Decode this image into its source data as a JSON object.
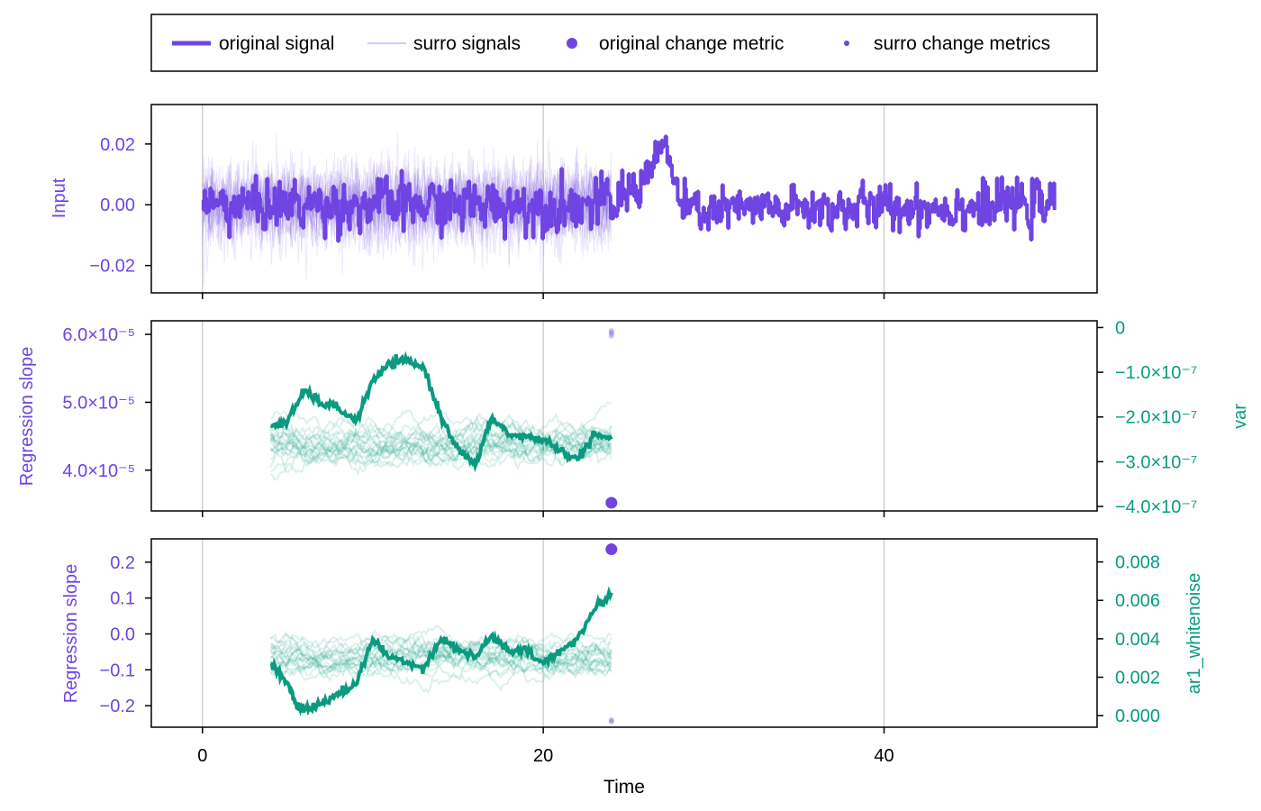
{
  "colors": {
    "primary": "#6f44e2",
    "secondary": "#0a9a80",
    "grid": "#d0d0d0",
    "axis": "#000000"
  },
  "legend": {
    "items": [
      {
        "label": "original signal",
        "marker": "thick-line"
      },
      {
        "label": "surro signals",
        "marker": "thin-line"
      },
      {
        "label": "original change metric",
        "marker": "big-dot"
      },
      {
        "label": "surro change metrics",
        "marker": "small-dot"
      }
    ]
  },
  "chart_data": [
    {
      "type": "line",
      "ylabel": "Input",
      "xlim": [
        -3,
        52.5
      ],
      "ylim": [
        -0.029,
        0.033
      ],
      "yticks": [
        -0.02,
        0.0,
        0.02
      ],
      "ytick_labels": [
        "−0.02",
        "0.00",
        "0.02"
      ],
      "xticks": [
        0,
        20,
        40
      ],
      "grid_x": true,
      "series": [
        {
          "name": "original signal",
          "role": "original",
          "x_start": 0,
          "x_end": 50,
          "noise_envelope": [
            {
              "x": 0,
              "mean": 0.0,
              "amplitude": 0.01
            },
            {
              "x": 24,
              "mean": 0.0,
              "amplitude": 0.011
            },
            {
              "x": 25.5,
              "mean": 0.006,
              "amplitude": 0.009
            },
            {
              "x": 27,
              "mean": 0.02,
              "amplitude": 0.008
            },
            {
              "x": 28.2,
              "mean": -0.002,
              "amplitude": 0.009
            },
            {
              "x": 50,
              "mean": 0.0,
              "amplitude": 0.01
            }
          ],
          "min": -0.026,
          "max": 0.03
        },
        {
          "name": "surro signals",
          "role": "surrogate",
          "count": 20,
          "x_start": 0,
          "x_end": 24,
          "amplitude": 0.012
        }
      ]
    },
    {
      "type": "line",
      "ylabel": "Regression slope",
      "ylabel_right": "var",
      "xlim": [
        -3,
        52.5
      ],
      "ylim_left": [
        3.4e-05,
        6.2e-05
      ],
      "ylim_right": [
        -4.1e-07,
        1.5e-08
      ],
      "yticks_left": [
        4e-05,
        5e-05,
        6e-05
      ],
      "ytick_labels_left": [
        "4.0×10⁻⁵",
        "5.0×10⁻⁵",
        "6.0×10⁻⁵"
      ],
      "yticks_right": [
        0,
        -1e-07,
        -2e-07,
        -3e-07,
        -4e-07
      ],
      "ytick_labels_right": [
        "0",
        "−1.0×10⁻⁷",
        "−2.0×10⁻⁷",
        "−3.0×10⁻⁷",
        "−4.0×10⁻⁷"
      ],
      "xticks": [
        0,
        20,
        40
      ],
      "grid_x": true,
      "metric_series": {
        "x": [
          4,
          5,
          6,
          7,
          8,
          9,
          10,
          11,
          12,
          13,
          14,
          15,
          16,
          17,
          18,
          19,
          20,
          21,
          22,
          23,
          24
        ],
        "y": [
          -2.2e-07,
          -2.1e-07,
          -1.4e-07,
          -1.7e-07,
          -1.8e-07,
          -2.1e-07,
          -1.2e-07,
          -8e-08,
          -7.5e-08,
          -9e-08,
          -2e-07,
          -2.7e-07,
          -3.1e-07,
          -2e-07,
          -2.4e-07,
          -2.45e-07,
          -2.5e-07,
          -2.75e-07,
          -2.95e-07,
          -2.4e-07,
          -2.5e-07
        ]
      },
      "surrogate_metrics": {
        "count": 20,
        "x_start": 4,
        "x_end": 24,
        "y_center": -2.6e-07,
        "spread": 1.2e-07
      },
      "change_metric": {
        "x": 24,
        "original": 3.52e-05,
        "surrogates": [
          5.98e-05,
          6.02e-05,
          6.05e-05
        ]
      }
    },
    {
      "type": "line",
      "ylabel": "Regression slope",
      "ylabel_right": "ar1_whitenoise",
      "xlabel": "Time",
      "xlim": [
        -3,
        52.5
      ],
      "ylim_left": [
        -0.26,
        0.265
      ],
      "ylim_right": [
        -0.0006,
        0.0092
      ],
      "yticks_left": [
        0.2,
        0.1,
        0.0,
        -0.1,
        -0.2
      ],
      "ytick_labels_left": [
        "0.2",
        "0.1",
        "0.0",
        "−0.1",
        "−0.2"
      ],
      "yticks_right": [
        0.008,
        0.006,
        0.004,
        0.002,
        0.0
      ],
      "ytick_labels_right": [
        "0.008",
        "0.006",
        "0.004",
        "0.002",
        "0.000"
      ],
      "xticks": [
        0,
        20,
        40
      ],
      "xtick_labels": [
        "0",
        "20",
        "40"
      ],
      "grid_x": true,
      "metric_series": {
        "x": [
          4,
          5,
          5.5,
          6,
          7,
          8,
          9,
          10,
          11,
          12,
          13,
          14,
          15,
          16,
          17,
          18,
          19,
          20,
          21,
          22,
          23,
          24
        ],
        "y": [
          0.0027,
          0.0017,
          0.0006,
          0.0003,
          0.0006,
          0.0012,
          0.0016,
          0.004,
          0.003,
          0.0028,
          0.0025,
          0.004,
          0.0035,
          0.003,
          0.0042,
          0.0033,
          0.0034,
          0.0027,
          0.0034,
          0.004,
          0.0055,
          0.0064
        ]
      },
      "surrogate_metrics": {
        "count": 20,
        "x_start": 4,
        "x_end": 24,
        "y_center": 0.003,
        "spread": 0.0025
      },
      "change_metric": {
        "x": 24,
        "original": 0.236,
        "surrogates": [
          -0.24,
          -0.245
        ]
      }
    }
  ]
}
